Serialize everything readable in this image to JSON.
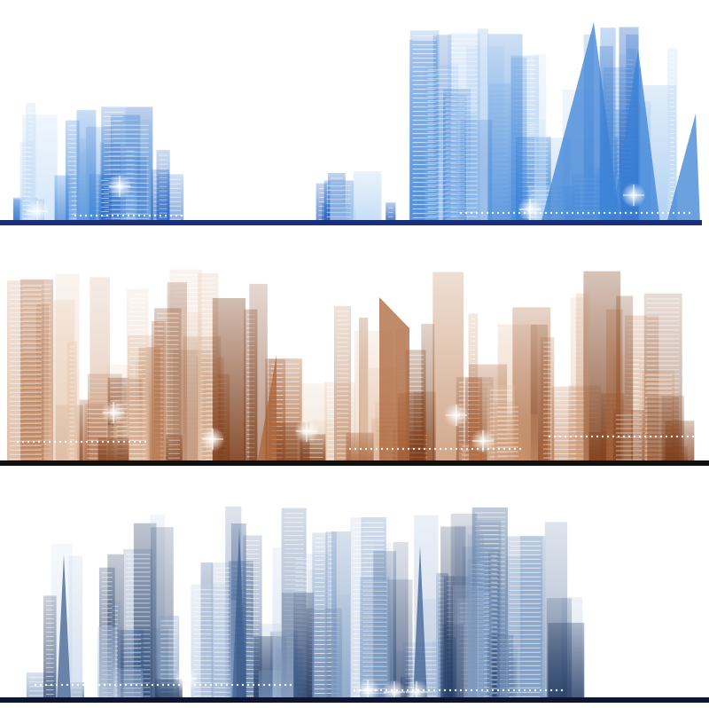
{
  "illustration": {
    "panels": [
      {
        "name": "blue-skyline",
        "palette": [
          "#1f5fbf",
          "#3b82d6",
          "#7fb3ea",
          "#c5def7",
          "#1a2f7a"
        ]
      },
      {
        "name": "brown-skyline",
        "palette": [
          "#7a3a16",
          "#a9643a",
          "#c99470",
          "#e6c7ad",
          "#111111"
        ]
      },
      {
        "name": "steel-blue-skyline",
        "palette": [
          "#233a63",
          "#3d5f8f",
          "#7f9dc4",
          "#c3d3e8",
          "#0d1630"
        ]
      }
    ]
  }
}
